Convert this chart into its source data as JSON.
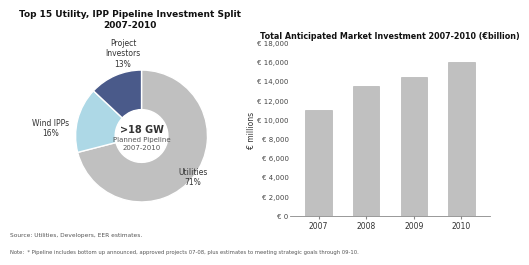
{
  "pie_title": "Top 15 Utility, IPP Pipeline Investment Split\n2007-2010",
  "pie_slices": [
    71,
    16,
    13
  ],
  "pie_labels": [
    "Utilities\n71%",
    "Wind IPPs\n16%",
    "Project\nInvestors\n13%"
  ],
  "pie_colors": [
    "#c0c0c0",
    "#add8e6",
    "#4a5a8a"
  ],
  "pie_center_text1": ">18 GW",
  "pie_center_text2": "Planned Pipeline\n2007-2010",
  "bar_title": "Total Anticipated Market Investment 2007-2010 (€billion)",
  "bar_years": [
    "2007",
    "2008",
    "2009",
    "2010"
  ],
  "bar_values": [
    11000,
    13500,
    14500,
    16000
  ],
  "bar_color": "#c0c0c0",
  "bar_ylabel": "€ millions",
  "bar_yticks": [
    0,
    2000,
    4000,
    6000,
    8000,
    10000,
    12000,
    14000,
    16000,
    18000
  ],
  "bar_yticklabels": [
    "€ 0",
    "€ 2,000",
    "€ 4,000",
    "€ 6,000",
    "€ 8,000",
    "€ 10,000",
    "€ 12,000",
    "€ 14,000",
    "€ 16,000",
    "€ 18,000"
  ],
  "source_text": "Source: Utilities, Developers, EER estimates.",
  "note_text": "Note:  * Pipeline includes bottom up announced, approved projects 07-08, plus estimates to meeting strategic goals through 09-10.",
  "bg_color": "#ffffff"
}
